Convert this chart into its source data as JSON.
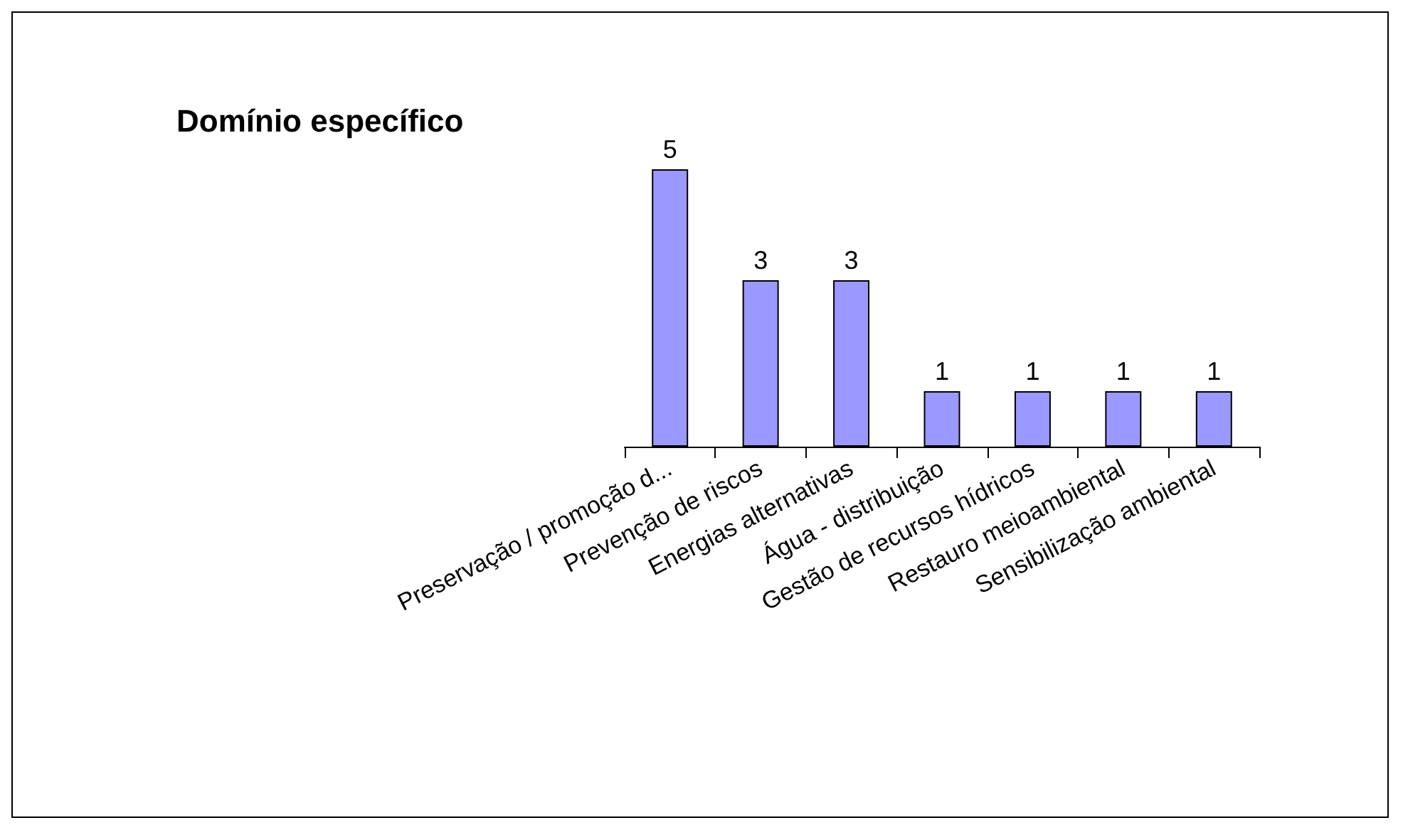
{
  "chart_data": {
    "type": "bar",
    "title": "Domínio específico",
    "categories": [
      "Preservação / promoção d...",
      "Prevenção de riscos",
      "Energias alternativas",
      "Água - distribuição",
      "Gestão de recursos hídricos",
      "Restauro meioambiental",
      "Sensibilização ambiental"
    ],
    "values": [
      5,
      3,
      3,
      1,
      1,
      1,
      1
    ],
    "color": "#9999ff",
    "data_labels": true
  }
}
